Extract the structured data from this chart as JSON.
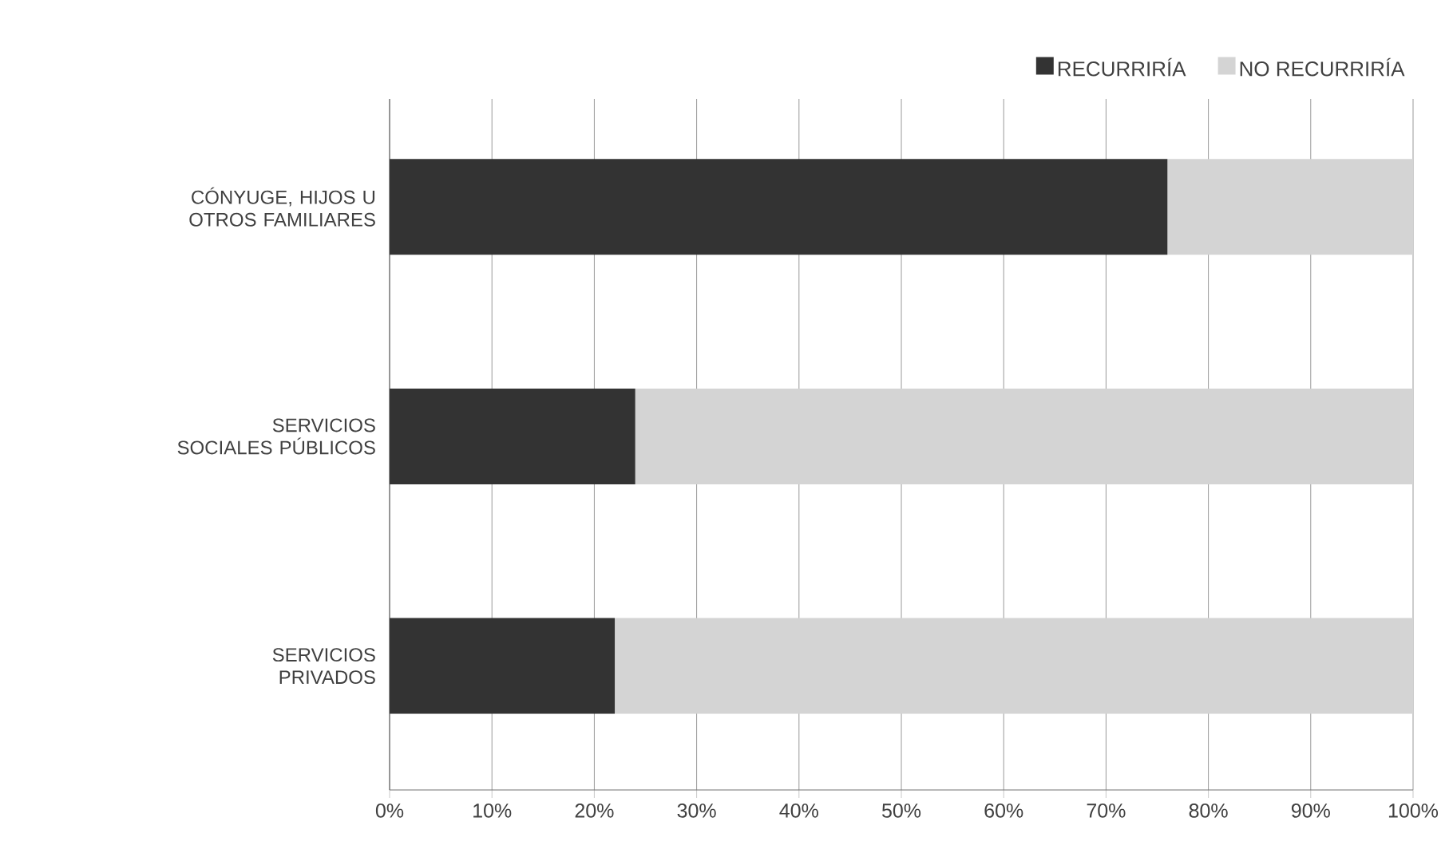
{
  "chart_data": {
    "type": "bar",
    "orientation": "horizontal",
    "stacked": true,
    "categories": [
      "CÓNYUGE, HIJOS U OTROS FAMILIARES",
      "SERVICIOS SOCIALES PÚBLICOS",
      "SERVICIOS PRIVADOS"
    ],
    "series": [
      {
        "name": "RECURRIRÍA",
        "color": "#333333",
        "values": [
          76,
          24,
          22
        ]
      },
      {
        "name": "NO RECURRIRÍA",
        "color": "#d4d4d4",
        "values": [
          24,
          76,
          78
        ]
      }
    ],
    "xlim": [
      0,
      100
    ],
    "xticks": [
      {
        "value": 0,
        "label": "0%"
      },
      {
        "value": 10,
        "label": "10%"
      },
      {
        "value": 20,
        "label": "20%"
      },
      {
        "value": 30,
        "label": "30%"
      },
      {
        "value": 40,
        "label": "40%"
      },
      {
        "value": 50,
        "label": "50%"
      },
      {
        "value": 60,
        "label": "60%"
      },
      {
        "value": 70,
        "label": "70%"
      },
      {
        "value": 80,
        "label": "80%"
      },
      {
        "value": 90,
        "label": "90%"
      },
      {
        "value": 100,
        "label": "100%"
      }
    ],
    "grid": "x",
    "legend": "top right"
  }
}
